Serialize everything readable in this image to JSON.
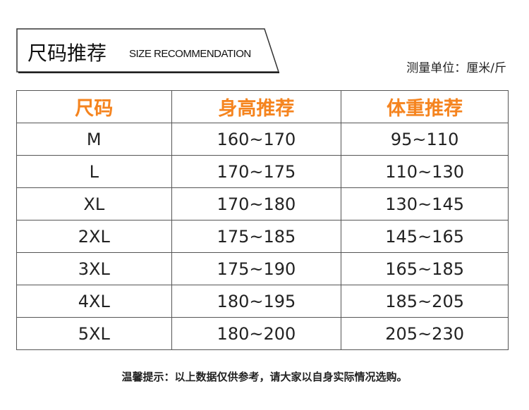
{
  "header": {
    "title_cn": "尺码推荐",
    "title_en": "SIZE RECOMMENDATION",
    "unit": "测量单位：厘米/斤"
  },
  "table": {
    "columns": [
      "尺码",
      "身高推荐",
      "体重推荐"
    ],
    "rows": [
      [
        "M",
        "160~170",
        "95~110"
      ],
      [
        "L",
        "170~175",
        "110~130"
      ],
      [
        "XL",
        "170~180",
        "130~145"
      ],
      [
        "2XL",
        "175~185",
        "145~165"
      ],
      [
        "3XL",
        "175~190",
        "165~185"
      ],
      [
        "4XL",
        "180~195",
        "185~205"
      ],
      [
        "5XL",
        "180~200",
        "205~230"
      ]
    ]
  },
  "footer": {
    "note": "温馨提示：以上数据仅供参考，请大家以自身实际情况选购。"
  },
  "colors": {
    "header_text": "#f5841f",
    "border": "#555555"
  }
}
